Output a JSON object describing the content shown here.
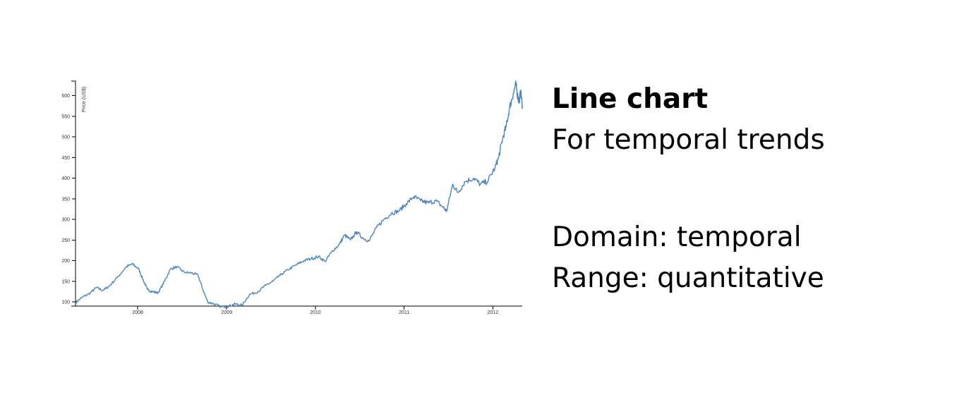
{
  "text": {
    "title": "Line chart",
    "subtitle": "For temporal trends",
    "domain_line": "Domain: temporal",
    "range_line": "Range: quantitative"
  },
  "colors": {
    "line": "#4a86c0"
  },
  "chart_data": {
    "type": "line",
    "ylabel": "Price (US$)",
    "xlabel": "",
    "x_ticks": [
      "2008",
      "2009",
      "2010",
      "2011",
      "2012"
    ],
    "y_ticks": [
      100,
      150,
      200,
      250,
      300,
      350,
      400,
      450,
      500,
      550,
      600
    ],
    "xlim": [
      "2007-04-20",
      "2012-05-01"
    ],
    "ylim": [
      90,
      635
    ],
    "grid": false,
    "series": [
      {
        "points": [
          [
            "2007-04-20",
            98
          ],
          [
            "2007-05-15",
            110
          ],
          [
            "2007-06-20",
            122
          ],
          [
            "2007-07-15",
            135
          ],
          [
            "2007-08-10",
            128
          ],
          [
            "2007-09-05",
            138
          ],
          [
            "2007-10-10",
            160
          ],
          [
            "2007-11-15",
            185
          ],
          [
            "2007-12-10",
            192
          ],
          [
            "2008-01-05",
            180
          ],
          [
            "2008-01-22",
            155
          ],
          [
            "2008-02-10",
            130
          ],
          [
            "2008-03-01",
            125
          ],
          [
            "2008-03-25",
            122
          ],
          [
            "2008-04-20",
            150
          ],
          [
            "2008-05-15",
            180
          ],
          [
            "2008-06-10",
            185
          ],
          [
            "2008-07-10",
            172
          ],
          [
            "2008-08-10",
            170
          ],
          [
            "2008-09-05",
            165
          ],
          [
            "2008-09-25",
            130
          ],
          [
            "2008-10-15",
            100
          ],
          [
            "2008-11-10",
            95
          ],
          [
            "2008-12-10",
            88
          ],
          [
            "2009-01-10",
            90
          ],
          [
            "2009-02-05",
            95
          ],
          [
            "2009-03-05",
            92
          ],
          [
            "2009-04-05",
            118
          ],
          [
            "2009-05-10",
            125
          ],
          [
            "2009-06-10",
            140
          ],
          [
            "2009-07-10",
            150
          ],
          [
            "2009-08-10",
            165
          ],
          [
            "2009-09-10",
            178
          ],
          [
            "2009-10-15",
            190
          ],
          [
            "2009-11-15",
            200
          ],
          [
            "2009-12-15",
            205
          ],
          [
            "2010-01-15",
            210
          ],
          [
            "2010-02-10",
            198
          ],
          [
            "2010-03-10",
            222
          ],
          [
            "2010-04-10",
            240
          ],
          [
            "2010-05-01",
            262
          ],
          [
            "2010-05-25",
            250
          ],
          [
            "2010-06-20",
            270
          ],
          [
            "2010-07-15",
            255
          ],
          [
            "2010-08-10",
            248
          ],
          [
            "2010-09-10",
            280
          ],
          [
            "2010-10-10",
            300
          ],
          [
            "2010-11-10",
            315
          ],
          [
            "2010-12-10",
            320
          ],
          [
            "2011-01-10",
            338
          ],
          [
            "2011-02-10",
            355
          ],
          [
            "2011-03-10",
            345
          ],
          [
            "2011-04-10",
            340
          ],
          [
            "2011-05-10",
            345
          ],
          [
            "2011-06-10",
            330
          ],
          [
            "2011-06-25",
            320
          ],
          [
            "2011-07-20",
            385
          ],
          [
            "2011-08-10",
            365
          ],
          [
            "2011-09-10",
            392
          ],
          [
            "2011-10-15",
            400
          ],
          [
            "2011-11-10",
            385
          ],
          [
            "2011-12-10",
            392
          ],
          [
            "2012-01-10",
            425
          ],
          [
            "2012-01-25",
            450
          ],
          [
            "2012-02-10",
            495
          ],
          [
            "2012-02-25",
            525
          ],
          [
            "2012-03-10",
            570
          ],
          [
            "2012-03-25",
            605
          ],
          [
            "2012-04-05",
            628
          ],
          [
            "2012-04-12",
            600
          ],
          [
            "2012-04-18",
            585
          ],
          [
            "2012-04-25",
            610
          ],
          [
            "2012-05-01",
            575
          ]
        ]
      }
    ]
  }
}
